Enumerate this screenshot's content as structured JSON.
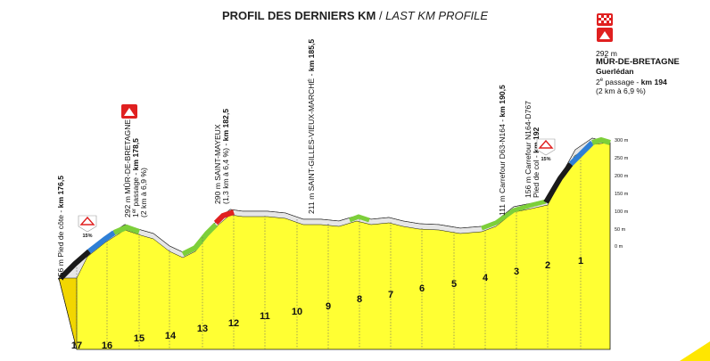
{
  "title": {
    "bold": "PROFIL DES DERNIERS KM",
    "sep": " / ",
    "italic": "LAST KM PROFILE"
  },
  "finish": {
    "elevation": "292 m",
    "name": "MÛR-DE-BRETAGNE",
    "sub": "Guerlédan",
    "passage_prefix": "2",
    "passage_sup": "e",
    "passage_text": " passage - ",
    "passage_km": "km 194",
    "climb": "(2 km à 6,9 %)"
  },
  "annotations": [
    {
      "id": "pied-cote",
      "text": "156 m Pied de côte - ",
      "bold": "km 176,5"
    },
    {
      "id": "mur-1",
      "lines": [
        "292 m MÛR-DE-BRETAGNE",
        "1er passage - km 178,5",
        "(2 km à 6,9 %)"
      ],
      "bold_part": "km 178,5"
    },
    {
      "id": "saint-mayeux",
      "lines": [
        "290 m SAINT-MAYEUX",
        "(1,3 km à 6,4 %) - km 182,5"
      ],
      "bold_part": "km 182,5"
    },
    {
      "id": "saint-gilles",
      "text": "211 m SAINT-GILLES-VIEUX-MARCHÉ - ",
      "bold": "km 185,5"
    },
    {
      "id": "carrefour-d63",
      "text": "111 m Carrefour D63-N164 - ",
      "bold": "km 190,5"
    },
    {
      "id": "carrefour-n164",
      "lines": [
        "156 m Carrefour N164-D767",
        "Pied de col - km 192"
      ],
      "bold_part": "km 192"
    }
  ],
  "badges": [
    {
      "id": "badge-15a",
      "text": "15%"
    },
    {
      "id": "badge-15b",
      "text": "15%"
    }
  ],
  "km_markers": [
    "17",
    "16",
    "15",
    "14",
    "13",
    "12",
    "11",
    "10",
    "9",
    "8",
    "7",
    "6",
    "5",
    "4",
    "3",
    "2",
    "1"
  ],
  "elevation_ticks": [
    "300 m",
    "250 m",
    "200 m",
    "150 m",
    "100 m",
    "50 m",
    "0 m"
  ],
  "colors": {
    "profile": "#ffff33",
    "side": "#e8c800",
    "climb_green": "#7dcf3a",
    "climb_blue": "#2f7fd6",
    "climb_red": "#e02020",
    "steep_black": "#1a1a1a"
  }
}
